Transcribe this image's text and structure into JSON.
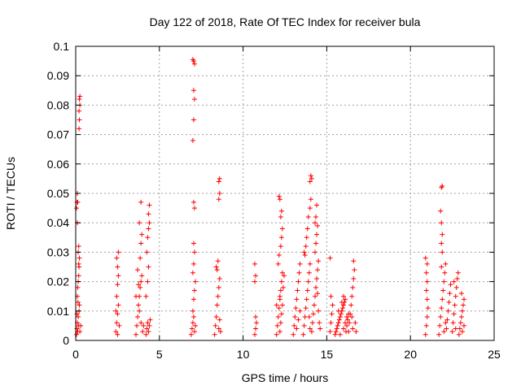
{
  "chart_data": {
    "type": "scatter",
    "title": "Day 122 of 2018, Rate Of TEC Index for receiver bula",
    "xlabel": "GPS time / hours",
    "ylabel": "ROTI / TECUs",
    "xlim": [
      0,
      25
    ],
    "ylim": [
      0,
      0.1
    ],
    "xticks": [
      "0",
      "5",
      "10",
      "15",
      "20",
      "25"
    ],
    "yticks": [
      "0",
      "0.01",
      "0.02",
      "0.03",
      "0.04",
      "0.05",
      "0.06",
      "0.07",
      "0.08",
      "0.09",
      "0.1"
    ],
    "grid": true,
    "marker": "+",
    "color": "#ff0000",
    "series": [
      {
        "points": [
          [
            0.05,
            0.002
          ],
          [
            0.08,
            0.004
          ],
          [
            0.1,
            0.006
          ],
          [
            0.12,
            0.003
          ],
          [
            0.15,
            0.008
          ],
          [
            0.18,
            0.005
          ],
          [
            0.2,
            0.01
          ],
          [
            0.22,
            0.012
          ],
          [
            0.1,
            0.015
          ],
          [
            0.12,
            0.018
          ],
          [
            0.15,
            0.02
          ],
          [
            0.18,
            0.022
          ],
          [
            0.2,
            0.025
          ],
          [
            0.22,
            0.028
          ],
          [
            0.15,
            0.03
          ],
          [
            0.18,
            0.032
          ],
          [
            0.1,
            0.04
          ],
          [
            0.05,
            0.045
          ],
          [
            0.08,
            0.047
          ],
          [
            0.1,
            0.05
          ],
          [
            0.12,
            0.047
          ],
          [
            0.2,
            0.072
          ],
          [
            0.22,
            0.075
          ],
          [
            0.2,
            0.078
          ],
          [
            0.25,
            0.08
          ],
          [
            0.22,
            0.082
          ],
          [
            0.25,
            0.083
          ],
          [
            0.18,
            0.026
          ],
          [
            0.25,
            0.003
          ],
          [
            0.3,
            0.005
          ],
          [
            0.08,
            0.009
          ],
          [
            0.14,
            0.013
          ],
          [
            2.4,
            0.003
          ],
          [
            2.45,
            0.006
          ],
          [
            2.5,
            0.009
          ],
          [
            2.55,
            0.012
          ],
          [
            2.45,
            0.015
          ],
          [
            2.5,
            0.019
          ],
          [
            2.55,
            0.022
          ],
          [
            2.5,
            0.025
          ],
          [
            2.45,
            0.028
          ],
          [
            2.55,
            0.03
          ],
          [
            2.6,
            0.005
          ],
          [
            2.4,
            0.01
          ],
          [
            2.5,
            0.002
          ],
          [
            3.6,
            0.002
          ],
          [
            3.65,
            0.005
          ],
          [
            3.7,
            0.008
          ],
          [
            3.75,
            0.012
          ],
          [
            3.8,
            0.015
          ],
          [
            3.85,
            0.018
          ],
          [
            3.9,
            0.02
          ],
          [
            3.95,
            0.022
          ],
          [
            3.7,
            0.024
          ],
          [
            3.8,
            0.01
          ],
          [
            3.9,
            0.006
          ],
          [
            4.0,
            0.003
          ],
          [
            3.85,
            0.028
          ],
          [
            3.9,
            0.033
          ],
          [
            3.95,
            0.036
          ],
          [
            3.8,
            0.04
          ],
          [
            3.9,
            0.047
          ],
          [
            4.05,
            0.005
          ],
          [
            3.6,
            0.015
          ],
          [
            3.75,
            0.019
          ],
          [
            4.2,
            0.002
          ],
          [
            4.25,
            0.004
          ],
          [
            4.3,
            0.006
          ],
          [
            4.35,
            0.003
          ],
          [
            4.4,
            0.005
          ],
          [
            4.45,
            0.007
          ],
          [
            4.3,
            0.02
          ],
          [
            4.35,
            0.025
          ],
          [
            4.25,
            0.03
          ],
          [
            4.3,
            0.035
          ],
          [
            4.35,
            0.038
          ],
          [
            4.4,
            0.04
          ],
          [
            4.35,
            0.043
          ],
          [
            4.4,
            0.046
          ],
          [
            4.2,
            0.015
          ],
          [
            6.9,
            0.002
          ],
          [
            6.95,
            0.004
          ],
          [
            7.0,
            0.006
          ],
          [
            7.05,
            0.008
          ],
          [
            7.1,
            0.003
          ],
          [
            7.15,
            0.005
          ],
          [
            7.0,
            0.01
          ],
          [
            7.05,
            0.014
          ],
          [
            7.1,
            0.017
          ],
          [
            7.15,
            0.02
          ],
          [
            7.0,
            0.023
          ],
          [
            7.05,
            0.026
          ],
          [
            7.1,
            0.03
          ],
          [
            7.05,
            0.033
          ],
          [
            7.1,
            0.045
          ],
          [
            7.05,
            0.047
          ],
          [
            7.0,
            0.068
          ],
          [
            7.05,
            0.075
          ],
          [
            7.1,
            0.082
          ],
          [
            7.05,
            0.085
          ],
          [
            7.05,
            0.095
          ],
          [
            7.1,
            0.094
          ],
          [
            7.0,
            0.0955
          ],
          [
            8.3,
            0.002
          ],
          [
            8.35,
            0.005
          ],
          [
            8.4,
            0.008
          ],
          [
            8.45,
            0.012
          ],
          [
            8.5,
            0.015
          ],
          [
            8.55,
            0.018
          ],
          [
            8.6,
            0.021
          ],
          [
            8.45,
            0.024
          ],
          [
            8.5,
            0.027
          ],
          [
            8.55,
            0.004
          ],
          [
            8.6,
            0.007
          ],
          [
            8.65,
            0.003
          ],
          [
            8.55,
            0.048
          ],
          [
            8.6,
            0.05
          ],
          [
            8.55,
            0.054
          ],
          [
            8.6,
            0.055
          ],
          [
            8.4,
            0.025
          ],
          [
            10.7,
            0.002
          ],
          [
            10.75,
            0.004
          ],
          [
            10.8,
            0.006
          ],
          [
            10.75,
            0.008
          ],
          [
            10.7,
            0.02
          ],
          [
            10.75,
            0.022
          ],
          [
            10.7,
            0.026
          ],
          [
            12.0,
            0.002
          ],
          [
            12.05,
            0.005
          ],
          [
            12.1,
            0.008
          ],
          [
            12.15,
            0.011
          ],
          [
            12.2,
            0.014
          ],
          [
            12.25,
            0.017
          ],
          [
            12.3,
            0.02
          ],
          [
            12.35,
            0.023
          ],
          [
            12.1,
            0.026
          ],
          [
            12.15,
            0.029
          ],
          [
            12.2,
            0.003
          ],
          [
            12.25,
            0.006
          ],
          [
            12.3,
            0.009
          ],
          [
            12.35,
            0.012
          ],
          [
            12.2,
            0.015
          ],
          [
            12.25,
            0.032
          ],
          [
            12.3,
            0.035
          ],
          [
            12.35,
            0.038
          ],
          [
            12.25,
            0.042
          ],
          [
            12.3,
            0.044
          ],
          [
            12.2,
            0.048
          ],
          [
            12.15,
            0.049
          ],
          [
            12.4,
            0.018
          ],
          [
            12.45,
            0.022
          ],
          [
            12.0,
            0.012
          ],
          [
            13.0,
            0.002
          ],
          [
            13.05,
            0.005
          ],
          [
            13.1,
            0.008
          ],
          [
            13.15,
            0.011
          ],
          [
            13.2,
            0.014
          ],
          [
            13.25,
            0.017
          ],
          [
            13.3,
            0.02
          ],
          [
            13.35,
            0.023
          ],
          [
            13.4,
            0.026
          ],
          [
            13.2,
            0.004
          ],
          [
            13.3,
            0.007
          ],
          [
            13.4,
            0.01
          ],
          [
            13.6,
            0.002
          ],
          [
            13.65,
            0.005
          ],
          [
            13.7,
            0.008
          ],
          [
            13.75,
            0.011
          ],
          [
            13.8,
            0.014
          ],
          [
            13.85,
            0.017
          ],
          [
            13.9,
            0.02
          ],
          [
            13.95,
            0.023
          ],
          [
            14.0,
            0.026
          ],
          [
            13.7,
            0.029
          ],
          [
            13.75,
            0.032
          ],
          [
            13.8,
            0.035
          ],
          [
            13.85,
            0.038
          ],
          [
            13.9,
            0.042
          ],
          [
            14.0,
            0.045
          ],
          [
            14.05,
            0.048
          ],
          [
            14.0,
            0.054
          ],
          [
            14.05,
            0.056
          ],
          [
            14.1,
            0.055
          ],
          [
            13.65,
            0.03
          ],
          [
            13.95,
            0.008
          ],
          [
            14.0,
            0.004
          ],
          [
            14.1,
            0.003
          ],
          [
            14.15,
            0.006
          ],
          [
            14.2,
            0.009
          ],
          [
            14.25,
            0.012
          ],
          [
            14.3,
            0.015
          ],
          [
            14.35,
            0.018
          ],
          [
            14.4,
            0.021
          ],
          [
            14.45,
            0.024
          ],
          [
            14.5,
            0.027
          ],
          [
            14.3,
            0.03
          ],
          [
            14.35,
            0.033
          ],
          [
            14.4,
            0.036
          ],
          [
            14.45,
            0.039
          ],
          [
            14.35,
            0.042
          ],
          [
            14.4,
            0.046
          ],
          [
            14.3,
            0.04
          ],
          [
            14.5,
            0.01
          ],
          [
            14.55,
            0.006
          ],
          [
            14.6,
            0.004
          ],
          [
            14.45,
            0.016
          ],
          [
            15.2,
            0.003
          ],
          [
            15.25,
            0.006
          ],
          [
            15.3,
            0.009
          ],
          [
            15.35,
            0.012
          ],
          [
            15.25,
            0.015
          ],
          [
            15.2,
            0.028
          ],
          [
            15.5,
            0.002
          ],
          [
            15.55,
            0.003
          ],
          [
            15.6,
            0.004
          ],
          [
            15.65,
            0.005
          ],
          [
            15.7,
            0.006
          ],
          [
            15.75,
            0.007
          ],
          [
            15.8,
            0.008
          ],
          [
            15.85,
            0.009
          ],
          [
            15.9,
            0.01
          ],
          [
            15.95,
            0.011
          ],
          [
            16.0,
            0.012
          ],
          [
            16.05,
            0.013
          ],
          [
            16.1,
            0.014
          ],
          [
            16.15,
            0.003
          ],
          [
            16.2,
            0.005
          ],
          [
            16.25,
            0.007
          ],
          [
            16.3,
            0.009
          ],
          [
            15.8,
            0.002
          ],
          [
            16.0,
            0.004
          ],
          [
            16.1,
            0.006
          ],
          [
            16.2,
            0.008
          ],
          [
            15.7,
            0.01
          ],
          [
            15.9,
            0.013
          ],
          [
            16.0,
            0.015
          ],
          [
            16.3,
            0.003
          ],
          [
            16.35,
            0.006
          ],
          [
            16.4,
            0.009
          ],
          [
            16.45,
            0.012
          ],
          [
            16.5,
            0.015
          ],
          [
            16.55,
            0.018
          ],
          [
            16.6,
            0.021
          ],
          [
            16.65,
            0.024
          ],
          [
            16.6,
            0.027
          ],
          [
            16.55,
            0.004
          ],
          [
            16.7,
            0.006
          ],
          [
            16.75,
            0.003
          ],
          [
            16.5,
            0.008
          ],
          [
            20.9,
            0.002
          ],
          [
            20.95,
            0.005
          ],
          [
            21.0,
            0.008
          ],
          [
            21.05,
            0.011
          ],
          [
            21.0,
            0.014
          ],
          [
            20.95,
            0.017
          ],
          [
            21.0,
            0.02
          ],
          [
            20.95,
            0.023
          ],
          [
            21.0,
            0.026
          ],
          [
            20.9,
            0.028
          ],
          [
            21.7,
            0.002
          ],
          [
            21.75,
            0.005
          ],
          [
            21.8,
            0.008
          ],
          [
            21.85,
            0.011
          ],
          [
            21.9,
            0.014
          ],
          [
            21.95,
            0.017
          ],
          [
            22.0,
            0.02
          ],
          [
            22.05,
            0.023
          ],
          [
            22.1,
            0.026
          ],
          [
            22.15,
            0.004
          ],
          [
            22.2,
            0.007
          ],
          [
            22.25,
            0.01
          ],
          [
            22.3,
            0.013
          ],
          [
            22.35,
            0.016
          ],
          [
            22.4,
            0.019
          ],
          [
            21.85,
            0.025
          ],
          [
            21.9,
            0.03
          ],
          [
            21.85,
            0.033
          ],
          [
            21.9,
            0.036
          ],
          [
            21.85,
            0.04
          ],
          [
            21.8,
            0.044
          ],
          [
            21.85,
            0.052
          ],
          [
            21.9,
            0.0525
          ],
          [
            22.0,
            0.003
          ],
          [
            22.1,
            0.006
          ],
          [
            22.5,
            0.003
          ],
          [
            22.55,
            0.006
          ],
          [
            22.6,
            0.009
          ],
          [
            22.65,
            0.012
          ],
          [
            22.7,
            0.015
          ],
          [
            22.75,
            0.018
          ],
          [
            22.8,
            0.021
          ],
          [
            22.85,
            0.023
          ],
          [
            22.6,
            0.02
          ],
          [
            22.7,
            0.004
          ],
          [
            22.9,
            0.002
          ],
          [
            22.95,
            0.004
          ],
          [
            23.0,
            0.006
          ],
          [
            23.05,
            0.008
          ],
          [
            23.1,
            0.01
          ],
          [
            23.15,
            0.012
          ],
          [
            23.2,
            0.014
          ],
          [
            23.05,
            0.016
          ],
          [
            23.1,
            0.003
          ],
          [
            23.2,
            0.005
          ]
        ]
      }
    ]
  }
}
